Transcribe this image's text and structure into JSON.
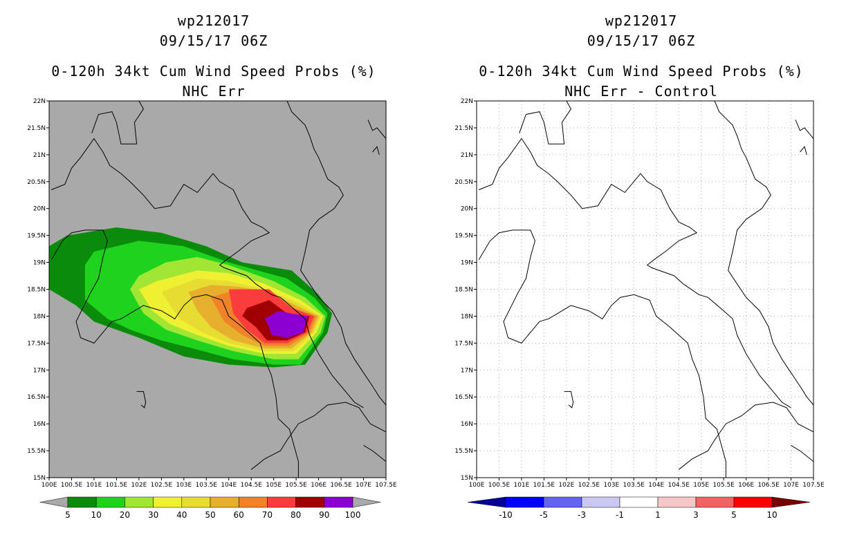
{
  "left": {
    "storm_id": "wp212017",
    "datetime": "09/15/17 06Z",
    "title": "0-120h 34kt Cum Wind Speed Probs (%)",
    "subtitle": "NHC Err",
    "background_color": "#a9a9a9",
    "colorbar": {
      "labels": [
        "5",
        "10",
        "20",
        "30",
        "40",
        "50",
        "60",
        "70",
        "80",
        "90",
        "100"
      ],
      "colors": [
        "#0a8c0a",
        "#1ed21e",
        "#a0e632",
        "#f0f032",
        "#e6dc32",
        "#e6af2d",
        "#f08228",
        "#fa3c3c",
        "#a00000",
        "#8c00d2"
      ],
      "end_arrow_color": "#a9a9a9"
    }
  },
  "right": {
    "storm_id": "wp212017",
    "datetime": "09/15/17 06Z",
    "title": "0-120h 34kt Cum Wind Speed Probs (%)",
    "subtitle": "NHC Err - Control",
    "background_color": "#ffffff",
    "colorbar": {
      "labels": [
        "-10",
        "-5",
        "-3",
        "-1",
        "1",
        "3",
        "5",
        "10"
      ],
      "colors": [
        "#0000ff",
        "#6464f0",
        "#c8c8f0",
        "#ffffff",
        "#f5c8c8",
        "#f06464",
        "#ff0000"
      ],
      "low_arrow_color": "#000096",
      "high_arrow_color": "#780000"
    }
  },
  "axes": {
    "lat_labels": [
      "22N",
      "21.5N",
      "21N",
      "20.5N",
      "20N",
      "19.5N",
      "19N",
      "18.5N",
      "18N",
      "17.5N",
      "17N",
      "16.5N",
      "16N",
      "15.5N",
      "15N"
    ],
    "lon_labels": [
      "100E",
      "100.5E",
      "101E",
      "101.5E",
      "102E",
      "102.5E",
      "103E",
      "103.5E",
      "104E",
      "104.5E",
      "105E",
      "105.5E",
      "106E",
      "106.5E",
      "107E",
      "107.5E"
    ],
    "lat_range": [
      15,
      22
    ],
    "lon_range": [
      100,
      107.5
    ]
  },
  "probability_contours": [
    {
      "level": 5,
      "color": "#0a8c0a",
      "points": [
        [
          100.0,
          19.3
        ],
        [
          100.4,
          19.5
        ],
        [
          101.5,
          19.65
        ],
        [
          102.5,
          19.55
        ],
        [
          103.5,
          19.3
        ],
        [
          104.3,
          19.0
        ],
        [
          105.4,
          18.85
        ],
        [
          106.0,
          18.4
        ],
        [
          106.3,
          18.05
        ],
        [
          106.2,
          17.7
        ],
        [
          105.7,
          17.1
        ],
        [
          105.0,
          17.05
        ],
        [
          104.0,
          17.1
        ],
        [
          103.0,
          17.25
        ],
        [
          102.0,
          17.6
        ],
        [
          101.0,
          17.9
        ],
        [
          100.6,
          18.2
        ],
        [
          100.0,
          18.5
        ]
      ]
    },
    {
      "level": 10,
      "color": "#1ed21e",
      "points": [
        [
          100.8,
          18.95
        ],
        [
          101.0,
          19.2
        ],
        [
          102.0,
          19.4
        ],
        [
          103.0,
          19.3
        ],
        [
          104.0,
          19.0
        ],
        [
          105.3,
          18.7
        ],
        [
          105.9,
          18.35
        ],
        [
          106.2,
          18.05
        ],
        [
          106.1,
          17.7
        ],
        [
          105.6,
          17.1
        ],
        [
          105.0,
          17.1
        ],
        [
          104.1,
          17.2
        ],
        [
          103.2,
          17.4
        ],
        [
          102.5,
          17.55
        ],
        [
          101.8,
          17.75
        ],
        [
          101.3,
          17.95
        ],
        [
          100.8,
          18.3
        ]
      ]
    },
    {
      "level": 20,
      "color": "#a0e632",
      "points": [
        [
          101.8,
          18.5
        ],
        [
          102.0,
          18.75
        ],
        [
          102.6,
          19.0
        ],
        [
          103.3,
          19.1
        ],
        [
          104.0,
          18.95
        ],
        [
          105.0,
          18.65
        ],
        [
          105.7,
          18.35
        ],
        [
          106.15,
          18.0
        ],
        [
          106.05,
          17.7
        ],
        [
          105.55,
          17.2
        ],
        [
          105.0,
          17.2
        ],
        [
          104.1,
          17.35
        ],
        [
          103.3,
          17.55
        ],
        [
          102.6,
          17.75
        ],
        [
          102.1,
          18.05
        ]
      ]
    },
    {
      "level": 30,
      "color": "#f0f032",
      "points": [
        [
          102.0,
          18.5
        ],
        [
          102.4,
          18.65
        ],
        [
          103.3,
          18.85
        ],
        [
          104.0,
          18.8
        ],
        [
          104.8,
          18.6
        ],
        [
          105.6,
          18.3
        ],
        [
          106.1,
          18.0
        ],
        [
          105.95,
          17.7
        ],
        [
          105.5,
          17.3
        ],
        [
          104.8,
          17.3
        ],
        [
          104.0,
          17.45
        ],
        [
          103.3,
          17.65
        ],
        [
          102.7,
          17.85
        ],
        [
          102.3,
          18.1
        ]
      ]
    },
    {
      "level": 40,
      "color": "#e6dc32",
      "points": [
        [
          102.5,
          18.45
        ],
        [
          103.3,
          18.7
        ],
        [
          104.0,
          18.65
        ],
        [
          104.8,
          18.5
        ],
        [
          105.55,
          18.25
        ],
        [
          106.05,
          18.0
        ],
        [
          105.9,
          17.7
        ],
        [
          105.45,
          17.35
        ],
        [
          104.8,
          17.35
        ],
        [
          104.0,
          17.5
        ],
        [
          103.4,
          17.7
        ],
        [
          102.9,
          17.95
        ]
      ]
    },
    {
      "level": 50,
      "color": "#e6af2d",
      "points": [
        [
          103.1,
          18.45
        ],
        [
          103.6,
          18.58
        ],
        [
          104.2,
          18.55
        ],
        [
          104.9,
          18.45
        ],
        [
          105.5,
          18.2
        ],
        [
          106.0,
          18.0
        ],
        [
          105.85,
          17.7
        ],
        [
          105.4,
          17.4
        ],
        [
          104.8,
          17.4
        ],
        [
          104.1,
          17.55
        ],
        [
          103.6,
          17.8
        ],
        [
          103.3,
          18.1
        ]
      ]
    },
    {
      "level": 60,
      "color": "#f08228",
      "points": [
        [
          103.6,
          18.35
        ],
        [
          104.2,
          18.5
        ],
        [
          104.9,
          18.4
        ],
        [
          105.45,
          18.15
        ],
        [
          105.95,
          18.0
        ],
        [
          105.8,
          17.7
        ],
        [
          105.35,
          17.45
        ],
        [
          104.8,
          17.45
        ],
        [
          104.3,
          17.65
        ],
        [
          103.9,
          17.9
        ]
      ]
    },
    {
      "level": 70,
      "color": "#fa3c3c",
      "points": [
        [
          104.0,
          18.5
        ],
        [
          104.9,
          18.5
        ],
        [
          105.4,
          18.15
        ],
        [
          105.9,
          18.0
        ],
        [
          105.75,
          17.7
        ],
        [
          105.3,
          17.5
        ],
        [
          104.8,
          17.5
        ],
        [
          104.4,
          17.75
        ],
        [
          104.1,
          18.05
        ]
      ]
    },
    {
      "level": 80,
      "color": "#a00000",
      "points": [
        [
          104.4,
          18.15
        ],
        [
          104.9,
          18.3
        ],
        [
          105.3,
          18.05
        ],
        [
          105.8,
          18.0
        ],
        [
          105.7,
          17.7
        ],
        [
          105.3,
          17.55
        ],
        [
          104.85,
          17.55
        ],
        [
          104.6,
          17.8
        ],
        [
          104.3,
          18.0
        ]
      ]
    },
    {
      "level": 90,
      "color": "#8c00d2",
      "points": [
        [
          104.8,
          17.95
        ],
        [
          105.1,
          18.1
        ],
        [
          105.4,
          18.05
        ],
        [
          105.75,
          18.0
        ],
        [
          105.65,
          17.7
        ],
        [
          105.3,
          17.6
        ],
        [
          104.95,
          17.65
        ],
        [
          104.9,
          17.8
        ]
      ]
    }
  ],
  "borders": [
    [
      [
        100.05,
        19.05
      ],
      [
        100.3,
        19.4
      ],
      [
        100.5,
        19.55
      ],
      [
        100.8,
        19.6
      ],
      [
        101.2,
        19.6
      ],
      [
        101.3,
        19.4
      ],
      [
        101.2,
        19.1
      ],
      [
        101.1,
        18.7
      ],
      [
        100.9,
        18.4
      ],
      [
        100.6,
        17.9
      ],
      [
        100.7,
        17.6
      ],
      [
        101.0,
        17.5
      ],
      [
        101.2,
        17.7
      ],
      [
        101.4,
        17.9
      ],
      [
        101.6,
        17.95
      ],
      [
        102.1,
        18.2
      ],
      [
        102.5,
        18.1
      ],
      [
        102.8,
        17.95
      ],
      [
        103.0,
        18.2
      ],
      [
        103.2,
        18.35
      ],
      [
        103.5,
        18.4
      ],
      [
        103.85,
        18.3
      ],
      [
        104.0,
        18.0
      ],
      [
        104.3,
        17.8
      ],
      [
        104.7,
        17.5
      ],
      [
        104.8,
        17.2
      ],
      [
        104.95,
        16.9
      ],
      [
        105.05,
        16.5
      ],
      [
        105.1,
        16.1
      ],
      [
        105.35,
        15.9
      ],
      [
        105.45,
        15.6
      ],
      [
        105.55,
        15.3
      ],
      [
        105.55,
        15.0
      ]
    ],
    [
      [
        100.95,
        21.4
      ],
      [
        101.1,
        21.75
      ],
      [
        101.4,
        21.8
      ],
      [
        101.5,
        21.6
      ],
      [
        101.6,
        21.2
      ],
      [
        101.95,
        21.2
      ],
      [
        101.9,
        21.6
      ],
      [
        102.1,
        21.85
      ],
      [
        102.0,
        22.0
      ]
    ],
    [
      [
        100.05,
        20.35
      ],
      [
        100.35,
        20.45
      ],
      [
        100.5,
        20.75
      ],
      [
        100.7,
        20.95
      ],
      [
        101.0,
        21.3
      ],
      [
        101.2,
        21.05
      ],
      [
        101.35,
        20.8
      ],
      [
        101.6,
        20.65
      ],
      [
        101.8,
        20.5
      ],
      [
        102.1,
        20.25
      ],
      [
        102.35,
        20.0
      ],
      [
        102.7,
        20.05
      ],
      [
        103.0,
        20.45
      ],
      [
        103.3,
        20.3
      ],
      [
        103.65,
        20.65
      ],
      [
        103.8,
        20.5
      ],
      [
        104.1,
        20.35
      ],
      [
        104.3,
        20.0
      ],
      [
        104.5,
        19.75
      ],
      [
        104.75,
        19.65
      ],
      [
        104.9,
        19.55
      ],
      [
        104.5,
        19.4
      ],
      [
        104.2,
        19.2
      ],
      [
        103.95,
        19.05
      ],
      [
        103.8,
        18.95
      ],
      [
        103.9,
        18.9
      ],
      [
        104.4,
        18.75
      ],
      [
        104.6,
        18.6
      ],
      [
        104.95,
        18.4
      ],
      [
        105.15,
        18.35
      ],
      [
        105.5,
        18.1
      ],
      [
        105.7,
        17.95
      ],
      [
        105.8,
        17.65
      ],
      [
        106.0,
        17.3
      ],
      [
        106.3,
        16.9
      ],
      [
        106.6,
        16.6
      ],
      [
        106.8,
        16.4
      ],
      [
        107.0,
        16.3
      ]
    ],
    [
      [
        105.3,
        22.0
      ],
      [
        105.4,
        21.8
      ],
      [
        105.7,
        21.55
      ],
      [
        105.8,
        21.35
      ],
      [
        105.9,
        21.1
      ],
      [
        106.0,
        20.95
      ],
      [
        106.1,
        20.75
      ],
      [
        106.2,
        20.55
      ],
      [
        106.45,
        20.4
      ],
      [
        106.55,
        20.25
      ],
      [
        106.35,
        20.0
      ],
      [
        106.0,
        19.8
      ],
      [
        105.8,
        19.6
      ],
      [
        105.7,
        19.2
      ],
      [
        105.6,
        18.85
      ],
      [
        105.8,
        18.6
      ],
      [
        106.0,
        18.35
      ],
      [
        106.3,
        18.1
      ],
      [
        106.5,
        17.8
      ],
      [
        106.6,
        17.5
      ],
      [
        106.8,
        17.2
      ],
      [
        107.0,
        16.95
      ],
      [
        107.2,
        16.7
      ],
      [
        107.35,
        16.5
      ],
      [
        107.5,
        16.35
      ]
    ],
    [
      [
        107.1,
        21.65
      ],
      [
        107.2,
        21.45
      ],
      [
        107.3,
        21.5
      ],
      [
        107.4,
        21.4
      ],
      [
        107.5,
        21.3
      ]
    ],
    [
      [
        107.2,
        21.05
      ],
      [
        107.3,
        21.15
      ],
      [
        107.35,
        21.0
      ]
    ],
    [
      [
        104.5,
        15.15
      ],
      [
        104.8,
        15.35
      ],
      [
        105.15,
        15.5
      ],
      [
        105.3,
        15.7
      ],
      [
        105.55,
        16.0
      ],
      [
        105.9,
        16.15
      ],
      [
        106.2,
        16.35
      ],
      [
        106.6,
        16.4
      ],
      [
        106.9,
        16.3
      ],
      [
        107.15,
        16.0
      ],
      [
        107.5,
        15.85
      ]
    ],
    [
      [
        107.0,
        15.6
      ],
      [
        107.2,
        15.5
      ],
      [
        107.5,
        15.3
      ]
    ],
    [
      [
        101.95,
        16.6
      ],
      [
        102.1,
        16.6
      ],
      [
        102.15,
        16.4
      ],
      [
        102.12,
        16.3
      ],
      [
        102.05,
        16.35
      ]
    ]
  ]
}
